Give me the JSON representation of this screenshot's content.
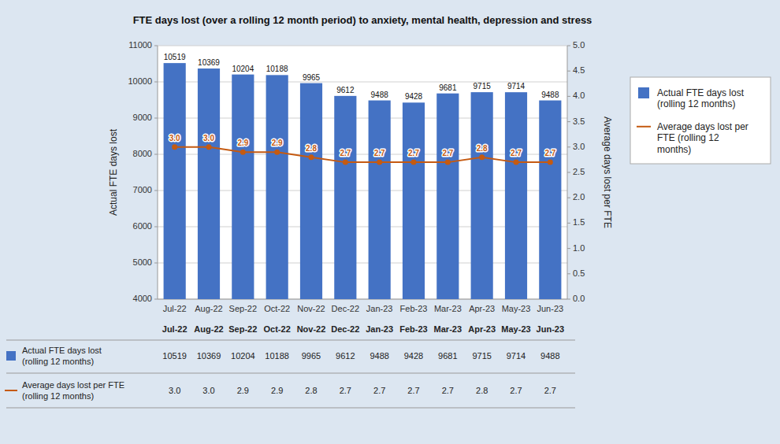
{
  "chart_data": {
    "type": "bar",
    "title": "FTE days lost (over a rolling 12 month period) to anxiety, mental health, depression and stress",
    "categories": [
      "Jul-22",
      "Aug-22",
      "Sep-22",
      "Oct-22",
      "Nov-22",
      "Dec-22",
      "Jan-23",
      "Feb-23",
      "Mar-23",
      "Apr-23",
      "May-23",
      "Jun-23"
    ],
    "series": [
      {
        "name": "Actual FTE days lost\n(rolling 12 months)",
        "type": "bar",
        "color": "#4472C4",
        "values": [
          10519,
          10369,
          10204,
          10188,
          9965,
          9612,
          9488,
          9428,
          9681,
          9715,
          9714,
          9488
        ]
      },
      {
        "name": "Average days lost per\nFTE (rolling 12\nmonths)",
        "type": "line",
        "axis": "y2",
        "color": "#C55A11",
        "marker": "circle",
        "values": [
          3.0,
          3.0,
          2.9,
          2.9,
          2.8,
          2.7,
          2.7,
          2.7,
          2.7,
          2.8,
          2.7,
          2.7
        ],
        "value_labels": [
          "3.0",
          "3.0",
          "2.9",
          "2.9",
          "2.8",
          "2.7",
          "2.7",
          "2.7",
          "2.7",
          "2.8",
          "2.7",
          "2.7"
        ]
      }
    ],
    "ylabel": "Actual FTE days lost",
    "y2label": "Average days lost per FTE",
    "ylim": [
      4000,
      11000
    ],
    "yticks": [
      4000,
      5000,
      6000,
      7000,
      8000,
      9000,
      10000,
      11000
    ],
    "y2lim": [
      0.0,
      5.0
    ],
    "y2ticks": [
      {
        "value": 0.0,
        "label": "0.0"
      },
      0.5,
      {
        "value": 1.0,
        "label": "1.0"
      },
      1.5,
      {
        "value": 2.0,
        "label": "2.0"
      },
      2.5,
      {
        "value": 3.0,
        "label": "3.0"
      },
      3.5,
      {
        "value": 4.0,
        "label": "4.0"
      },
      4.5,
      {
        "value": 5.0,
        "label": "5.0"
      }
    ],
    "grid": true,
    "legend": "right",
    "data_labels": true,
    "table_row_labels": [
      "Actual FTE days lost (rolling 12 months)",
      "Average days lost per FTE (rolling 12 months)"
    ]
  }
}
